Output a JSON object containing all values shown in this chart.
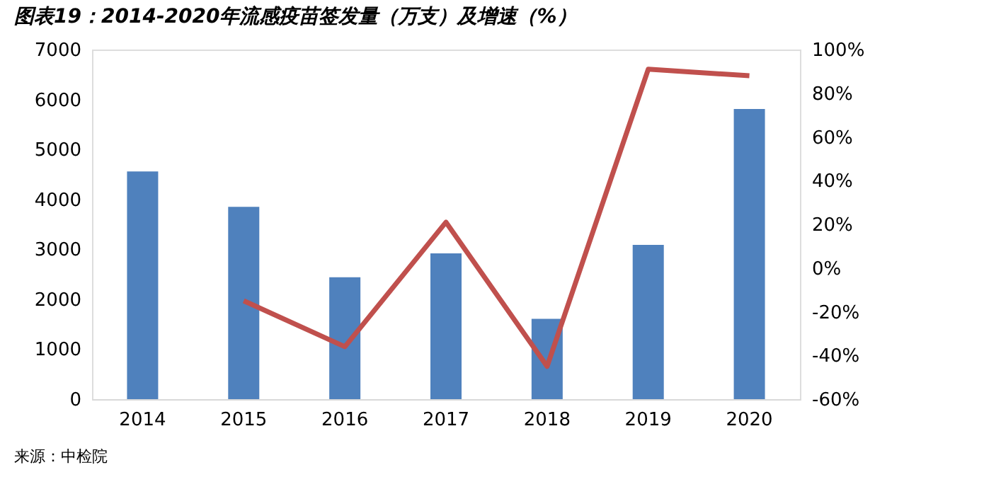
{
  "chart_data": {
    "type": "bar",
    "title": "图表19：2014-2020年流感疫苗签发量（万支）及增速（%）",
    "categories": [
      "2014",
      "2015",
      "2016",
      "2017",
      "2018",
      "2019",
      "2020"
    ],
    "series": [
      {
        "type": "bar",
        "color": "#4f81bd",
        "values": [
          4560,
          3850,
          2440,
          2920,
          1610,
          3090,
          5810
        ]
      },
      {
        "type": "line",
        "axis": "y2",
        "color": "#c0504d",
        "values": [
          null,
          -15,
          -36,
          21,
          -45,
          91,
          88
        ]
      }
    ],
    "ylim": [
      0,
      7000
    ],
    "yticks": [
      0,
      1000,
      2000,
      3000,
      4000,
      5000,
      6000,
      7000
    ],
    "y2lim": [
      -60,
      100
    ],
    "y2ticks": [
      {
        "value": -60,
        "label": "-60%"
      },
      {
        "value": -40,
        "label": "-40%"
      },
      {
        "value": -20,
        "label": "-20%"
      },
      {
        "value": 0,
        "label": "0%"
      },
      {
        "value": 20,
        "label": "20%"
      },
      {
        "value": 40,
        "label": "40%"
      },
      {
        "value": 60,
        "label": "60%"
      },
      {
        "value": 80,
        "label": "80%"
      },
      {
        "value": 100,
        "label": "100%"
      }
    ],
    "grid": false,
    "marker": "none",
    "line_style": "solid",
    "annotations": [
      "来源：中检院"
    ]
  }
}
